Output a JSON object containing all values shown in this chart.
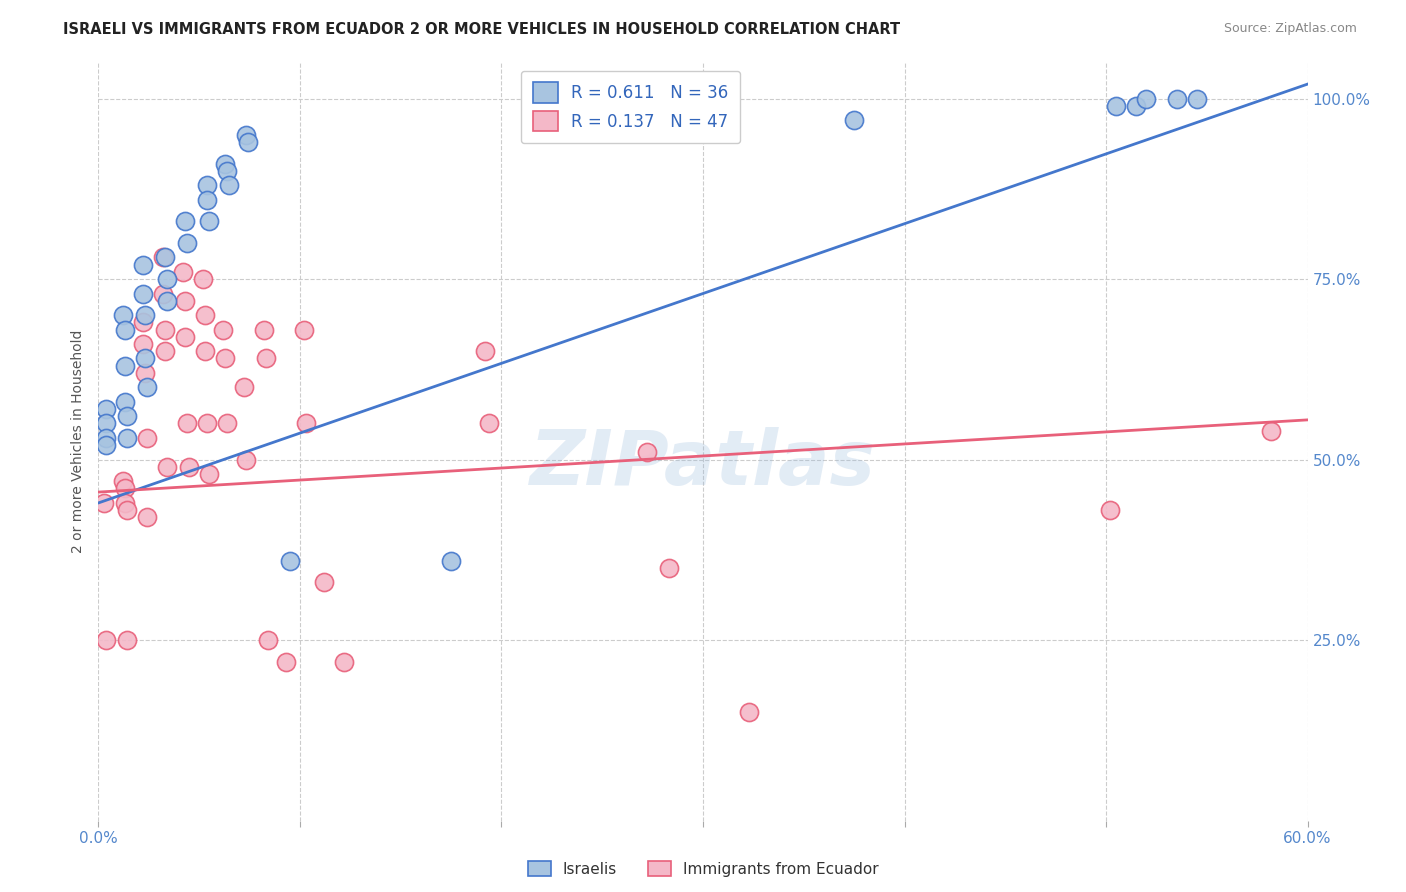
{
  "title": "ISRAELI VS IMMIGRANTS FROM ECUADOR 2 OR MORE VEHICLES IN HOUSEHOLD CORRELATION CHART",
  "source": "Source: ZipAtlas.com",
  "ylabel": "2 or more Vehicles in Household",
  "x_min": 0.0,
  "x_max": 0.6,
  "y_min": 0.0,
  "y_max": 1.05,
  "x_ticks": [
    0.0,
    0.1,
    0.2,
    0.3,
    0.4,
    0.5,
    0.6
  ],
  "x_tick_labels": [
    "0.0%",
    "",
    "",
    "",
    "",
    "",
    "60.0%"
  ],
  "y_ticks": [
    0.25,
    0.5,
    0.75,
    1.0
  ],
  "y_tick_labels": [
    "25.0%",
    "50.0%",
    "75.0%",
    "100.0%"
  ],
  "israelis_R": 0.611,
  "israelis_N": 36,
  "ecuador_R": 0.137,
  "ecuador_N": 47,
  "israelis_color": "#a8c4e0",
  "ecuador_color": "#f4b8c8",
  "israelis_line_color": "#4477cc",
  "ecuador_line_color": "#e8607a",
  "legend_label_1": "Israelis",
  "legend_label_2": "Immigrants from Ecuador",
  "watermark": "ZIPatlas",
  "isr_line_x0": 0.0,
  "isr_line_y0": 0.44,
  "isr_line_x1": 0.6,
  "isr_line_y1": 1.02,
  "ecu_line_x0": 0.0,
  "ecu_line_y0": 0.455,
  "ecu_line_x1": 0.6,
  "ecu_line_y1": 0.555,
  "israelis_x": [
    0.004,
    0.004,
    0.004,
    0.004,
    0.012,
    0.013,
    0.013,
    0.013,
    0.014,
    0.014,
    0.022,
    0.022,
    0.023,
    0.023,
    0.024,
    0.033,
    0.034,
    0.034,
    0.043,
    0.044,
    0.054,
    0.054,
    0.055,
    0.063,
    0.064,
    0.065,
    0.073,
    0.074,
    0.095,
    0.175,
    0.375,
    0.505,
    0.515,
    0.52,
    0.535,
    0.545
  ],
  "israelis_y": [
    0.57,
    0.55,
    0.53,
    0.52,
    0.7,
    0.68,
    0.63,
    0.58,
    0.56,
    0.53,
    0.77,
    0.73,
    0.7,
    0.64,
    0.6,
    0.78,
    0.75,
    0.72,
    0.83,
    0.8,
    0.88,
    0.86,
    0.83,
    0.91,
    0.9,
    0.88,
    0.95,
    0.94,
    0.36,
    0.36,
    0.97,
    0.99,
    0.99,
    1.0,
    1.0,
    1.0
  ],
  "ecuador_x": [
    0.003,
    0.004,
    0.012,
    0.013,
    0.013,
    0.014,
    0.014,
    0.022,
    0.022,
    0.023,
    0.024,
    0.024,
    0.032,
    0.032,
    0.033,
    0.033,
    0.034,
    0.042,
    0.043,
    0.043,
    0.044,
    0.045,
    0.052,
    0.053,
    0.053,
    0.054,
    0.055,
    0.062,
    0.063,
    0.064,
    0.072,
    0.073,
    0.082,
    0.083,
    0.084,
    0.093,
    0.102,
    0.103,
    0.112,
    0.122,
    0.192,
    0.194,
    0.272,
    0.283,
    0.323,
    0.502,
    0.582
  ],
  "ecuador_y": [
    0.44,
    0.25,
    0.47,
    0.46,
    0.44,
    0.43,
    0.25,
    0.69,
    0.66,
    0.62,
    0.53,
    0.42,
    0.78,
    0.73,
    0.68,
    0.65,
    0.49,
    0.76,
    0.72,
    0.67,
    0.55,
    0.49,
    0.75,
    0.7,
    0.65,
    0.55,
    0.48,
    0.68,
    0.64,
    0.55,
    0.6,
    0.5,
    0.68,
    0.64,
    0.25,
    0.22,
    0.68,
    0.55,
    0.33,
    0.22,
    0.65,
    0.55,
    0.51,
    0.35,
    0.15,
    0.43,
    0.54
  ]
}
